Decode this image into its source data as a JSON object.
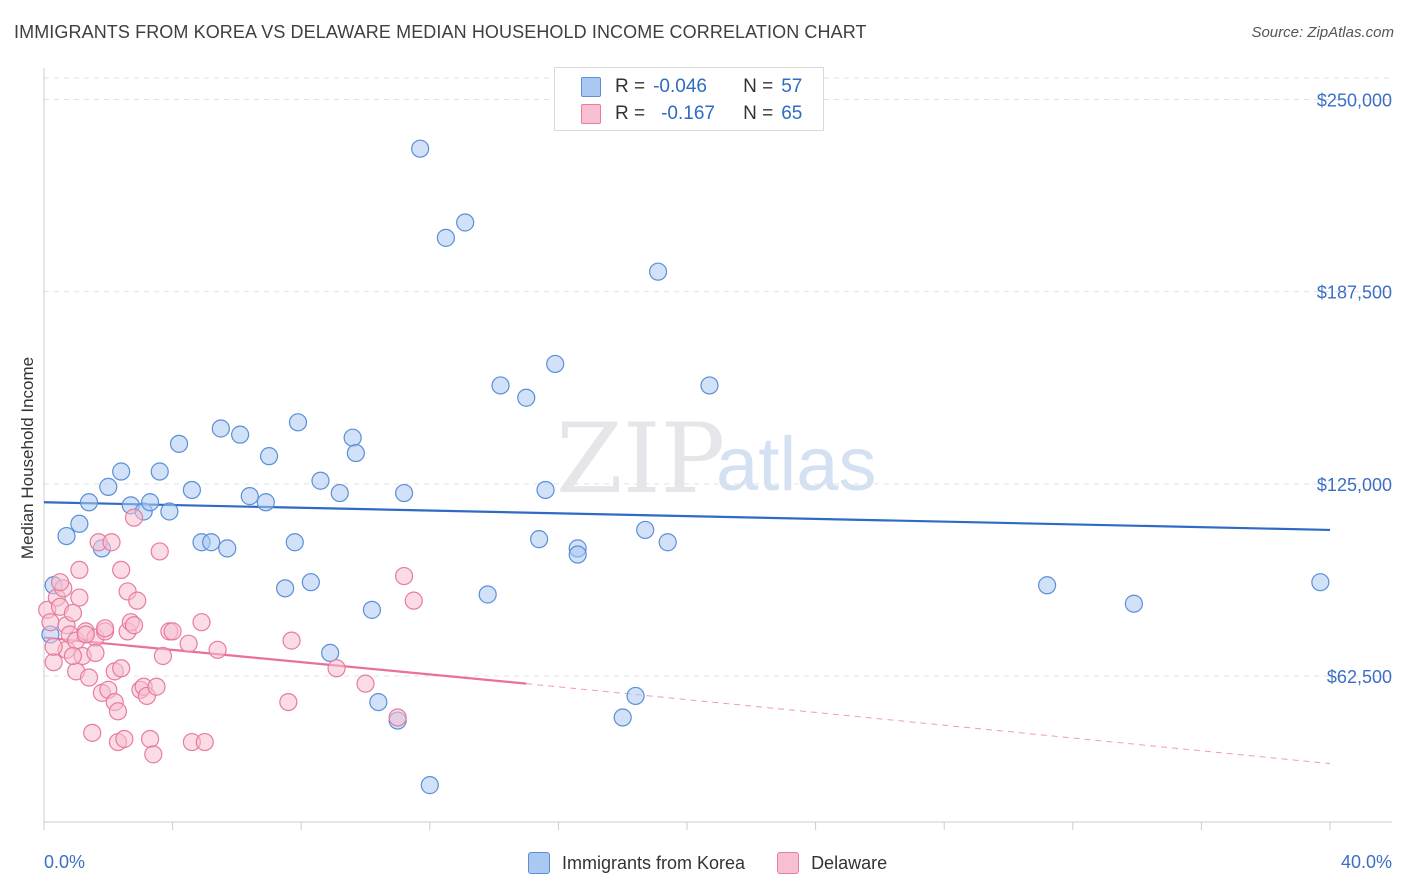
{
  "title": "IMMIGRANTS FROM KOREA VS DELAWARE MEDIAN HOUSEHOLD INCOME CORRELATION CHART",
  "source": "Source: ZipAtlas.com",
  "watermark": {
    "zip": "ZIP",
    "atlas": "atlas"
  },
  "legend": {
    "rows": [
      {
        "r_label": "R =",
        "r_value": "-0.046",
        "n_label": "N =",
        "n_value": "57",
        "color": "#a9c9f2",
        "border": "#5b8fd6"
      },
      {
        "r_label": "R =",
        "r_value": "-0.167",
        "n_label": "N =",
        "n_value": "65",
        "color": "#f7bfd0",
        "border": "#e67ca0"
      }
    ]
  },
  "bottom_legend": [
    {
      "label": "Immigrants from Korea",
      "color": "#a9c9f2",
      "border": "#5b8fd6"
    },
    {
      "label": "Delaware",
      "color": "#f7bfd0",
      "border": "#e67ca0"
    }
  ],
  "chart_data": {
    "type": "scatter",
    "xlabel": "",
    "ylabel": "Median Household Income",
    "xlim": [
      0,
      40
    ],
    "ylim": [
      15000,
      257000
    ],
    "x_tick_labels": {
      "min": "0.0%",
      "max": "40.0%"
    },
    "y_ticks": [
      {
        "value": 62500,
        "label": "$62,500"
      },
      {
        "value": 125000,
        "label": "$125,000"
      },
      {
        "value": 187500,
        "label": "$187,500"
      },
      {
        "value": 250000,
        "label": "$250,000"
      }
    ],
    "grid": true,
    "series": [
      {
        "name": "Immigrants from Korea",
        "color": "#a9c9f2",
        "stroke": "#5b8fd6",
        "trend": {
          "x": [
            0,
            40
          ],
          "y": [
            119000,
            110000
          ],
          "color": "#2f6ac4"
        },
        "points": [
          {
            "x": 0.3,
            "y": 92000
          },
          {
            "x": 0.7,
            "y": 108000
          },
          {
            "x": 1.1,
            "y": 112000
          },
          {
            "x": 1.4,
            "y": 119000
          },
          {
            "x": 1.8,
            "y": 104000
          },
          {
            "x": 2.0,
            "y": 124000
          },
          {
            "x": 2.4,
            "y": 129000
          },
          {
            "x": 2.7,
            "y": 118000
          },
          {
            "x": 3.1,
            "y": 116000
          },
          {
            "x": 3.3,
            "y": 119000
          },
          {
            "x": 3.6,
            "y": 129000
          },
          {
            "x": 3.9,
            "y": 116000
          },
          {
            "x": 4.2,
            "y": 138000
          },
          {
            "x": 4.6,
            "y": 123000
          },
          {
            "x": 4.9,
            "y": 106000
          },
          {
            "x": 5.2,
            "y": 106000
          },
          {
            "x": 5.5,
            "y": 143000
          },
          {
            "x": 5.7,
            "y": 104000
          },
          {
            "x": 6.1,
            "y": 141000
          },
          {
            "x": 6.4,
            "y": 121000
          },
          {
            "x": 6.9,
            "y": 119000
          },
          {
            "x": 7.0,
            "y": 134000
          },
          {
            "x": 7.5,
            "y": 91000
          },
          {
            "x": 7.8,
            "y": 106000
          },
          {
            "x": 7.9,
            "y": 145000
          },
          {
            "x": 8.3,
            "y": 93000
          },
          {
            "x": 8.6,
            "y": 126000
          },
          {
            "x": 8.9,
            "y": 70000
          },
          {
            "x": 9.2,
            "y": 122000
          },
          {
            "x": 9.6,
            "y": 140000
          },
          {
            "x": 9.7,
            "y": 135000
          },
          {
            "x": 10.2,
            "y": 84000
          },
          {
            "x": 10.4,
            "y": 54000
          },
          {
            "x": 11.0,
            "y": 48000
          },
          {
            "x": 11.2,
            "y": 122000
          },
          {
            "x": 11.7,
            "y": 234000
          },
          {
            "x": 12.0,
            "y": 27000
          },
          {
            "x": 12.5,
            "y": 205000
          },
          {
            "x": 13.1,
            "y": 210000
          },
          {
            "x": 13.8,
            "y": 89000
          },
          {
            "x": 14.2,
            "y": 157000
          },
          {
            "x": 15.0,
            "y": 153000
          },
          {
            "x": 15.4,
            "y": 107000
          },
          {
            "x": 15.6,
            "y": 123000
          },
          {
            "x": 15.9,
            "y": 164000
          },
          {
            "x": 16.6,
            "y": 104000
          },
          {
            "x": 16.6,
            "y": 102000
          },
          {
            "x": 18.0,
            "y": 49000
          },
          {
            "x": 18.4,
            "y": 56000
          },
          {
            "x": 18.7,
            "y": 110000
          },
          {
            "x": 19.1,
            "y": 194000
          },
          {
            "x": 19.4,
            "y": 106000
          },
          {
            "x": 20.7,
            "y": 157000
          },
          {
            "x": 31.2,
            "y": 92000
          },
          {
            "x": 33.9,
            "y": 86000
          },
          {
            "x": 39.7,
            "y": 93000
          },
          {
            "x": 0.2,
            "y": 76000
          }
        ]
      },
      {
        "name": "Delaware",
        "color": "#f7bfd0",
        "stroke": "#e67ca0",
        "trend": {
          "x": [
            0,
            15
          ],
          "y": [
            75000,
            60000
          ],
          "color": "#e8709a",
          "dashed_extension": {
            "x": [
              15,
              40
            ],
            "y": [
              60000,
              34000
            ]
          }
        },
        "points": [
          {
            "x": 0.1,
            "y": 84000
          },
          {
            "x": 0.2,
            "y": 80000
          },
          {
            "x": 0.3,
            "y": 67000
          },
          {
            "x": 0.4,
            "y": 88000
          },
          {
            "x": 0.5,
            "y": 85000
          },
          {
            "x": 0.6,
            "y": 91000
          },
          {
            "x": 0.7,
            "y": 79000
          },
          {
            "x": 0.7,
            "y": 71000
          },
          {
            "x": 0.8,
            "y": 76000
          },
          {
            "x": 0.9,
            "y": 83000
          },
          {
            "x": 1.0,
            "y": 64000
          },
          {
            "x": 1.0,
            "y": 74000
          },
          {
            "x": 1.1,
            "y": 88000
          },
          {
            "x": 1.1,
            "y": 97000
          },
          {
            "x": 1.2,
            "y": 69000
          },
          {
            "x": 1.3,
            "y": 77000
          },
          {
            "x": 1.4,
            "y": 62000
          },
          {
            "x": 1.5,
            "y": 44000
          },
          {
            "x": 1.6,
            "y": 75000
          },
          {
            "x": 1.6,
            "y": 70000
          },
          {
            "x": 1.7,
            "y": 106000
          },
          {
            "x": 1.8,
            "y": 57000
          },
          {
            "x": 1.9,
            "y": 77000
          },
          {
            "x": 2.0,
            "y": 58000
          },
          {
            "x": 2.1,
            "y": 106000
          },
          {
            "x": 2.2,
            "y": 54000
          },
          {
            "x": 2.2,
            "y": 64000
          },
          {
            "x": 2.3,
            "y": 41000
          },
          {
            "x": 2.4,
            "y": 97000
          },
          {
            "x": 2.4,
            "y": 65000
          },
          {
            "x": 2.5,
            "y": 42000
          },
          {
            "x": 2.6,
            "y": 77000
          },
          {
            "x": 2.6,
            "y": 90000
          },
          {
            "x": 2.7,
            "y": 80000
          },
          {
            "x": 2.8,
            "y": 114000
          },
          {
            "x": 2.8,
            "y": 79000
          },
          {
            "x": 2.9,
            "y": 87000
          },
          {
            "x": 3.0,
            "y": 58000
          },
          {
            "x": 3.1,
            "y": 59000
          },
          {
            "x": 3.2,
            "y": 56000
          },
          {
            "x": 3.3,
            "y": 42000
          },
          {
            "x": 3.4,
            "y": 37000
          },
          {
            "x": 3.5,
            "y": 59000
          },
          {
            "x": 3.6,
            "y": 103000
          },
          {
            "x": 3.7,
            "y": 69000
          },
          {
            "x": 3.9,
            "y": 77000
          },
          {
            "x": 4.0,
            "y": 77000
          },
          {
            "x": 4.5,
            "y": 73000
          },
          {
            "x": 4.6,
            "y": 41000
          },
          {
            "x": 4.9,
            "y": 80000
          },
          {
            "x": 5.0,
            "y": 41000
          },
          {
            "x": 5.4,
            "y": 71000
          },
          {
            "x": 7.6,
            "y": 54000
          },
          {
            "x": 7.7,
            "y": 74000
          },
          {
            "x": 9.1,
            "y": 65000
          },
          {
            "x": 10.0,
            "y": 60000
          },
          {
            "x": 11.0,
            "y": 49000
          },
          {
            "x": 11.2,
            "y": 95000
          },
          {
            "x": 11.5,
            "y": 87000
          },
          {
            "x": 0.3,
            "y": 72000
          },
          {
            "x": 0.5,
            "y": 93000
          },
          {
            "x": 0.9,
            "y": 69000
          },
          {
            "x": 1.3,
            "y": 76000
          },
          {
            "x": 1.9,
            "y": 78000
          },
          {
            "x": 2.3,
            "y": 51000
          }
        ]
      }
    ]
  }
}
